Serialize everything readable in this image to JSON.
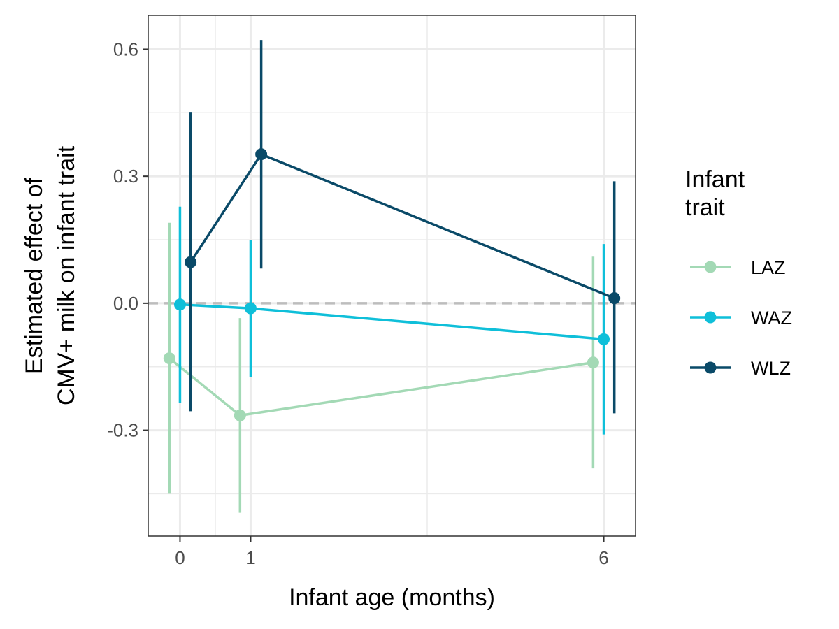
{
  "chart_data": {
    "type": "line",
    "xlabel": "Infant age (months)",
    "ylabel_lines": [
      "Estimated effect of",
      "CMV+ milk on infant trait"
    ],
    "x_ticks": [
      0,
      1,
      6
    ],
    "y_ticks": [
      -0.3,
      0.0,
      0.3,
      0.6
    ],
    "y_tick_labels": [
      "-0.3",
      "0.0",
      "0.3",
      "0.6"
    ],
    "xlim": [
      -0.45,
      6.45
    ],
    "ylim": [
      -0.55,
      0.68
    ],
    "reference_line": 0,
    "grid": true,
    "legend_position": "right",
    "legend_title_lines": [
      "Infant",
      "trait"
    ],
    "series": [
      {
        "name": "LAZ",
        "color": "#a3d9b5",
        "x": [
          -0.15,
          0.85,
          5.85
        ],
        "y": [
          -0.13,
          -0.265,
          -0.14
        ],
        "lower": [
          -0.45,
          -0.495,
          -0.39
        ],
        "upper": [
          0.19,
          -0.035,
          0.11
        ]
      },
      {
        "name": "WAZ",
        "color": "#0fbfd9",
        "x": [
          0.0,
          1.0,
          6.0
        ],
        "y": [
          -0.003,
          -0.012,
          -0.085
        ],
        "lower": [
          -0.235,
          -0.175,
          -0.31
        ],
        "upper": [
          0.228,
          0.15,
          0.14
        ]
      },
      {
        "name": "WLZ",
        "color": "#0a4a68",
        "x": [
          0.15,
          1.15,
          6.15
        ],
        "y": [
          0.097,
          0.352,
          0.012
        ],
        "lower": [
          -0.255,
          0.082,
          -0.26
        ],
        "upper": [
          0.452,
          0.622,
          0.288
        ]
      }
    ]
  }
}
